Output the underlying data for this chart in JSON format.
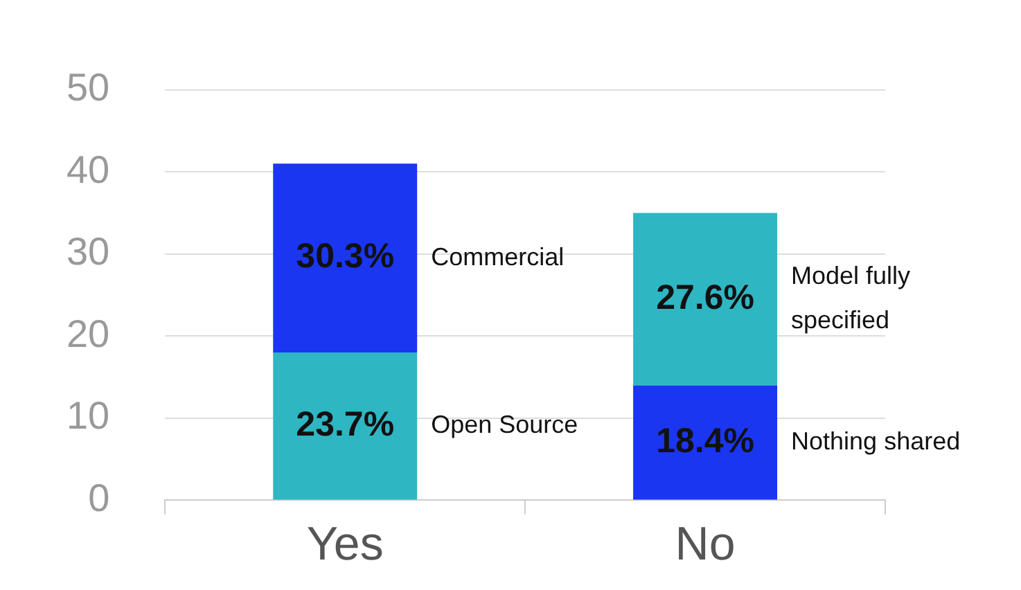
{
  "chart_data": {
    "type": "bar",
    "stacked": true,
    "categories": [
      "Yes",
      "No"
    ],
    "series": [
      {
        "colors": [
          "#2fb6c3",
          "#1a36f0"
        ],
        "values": [
          18,
          14
        ]
      },
      {
        "colors": [
          "#1a36f0",
          "#2fb6c3"
        ],
        "values": [
          23,
          21
        ]
      }
    ],
    "ylim": [
      0,
      50
    ],
    "yticks": [
      0,
      10,
      20,
      30,
      40,
      50
    ],
    "grid": "y",
    "legend": false,
    "annotations": [
      "23.7%",
      "Open Source",
      "18.4%",
      "Nothing shared",
      "30.3%",
      "Commercial",
      "27.6%",
      "Model fully specified"
    ]
  }
}
